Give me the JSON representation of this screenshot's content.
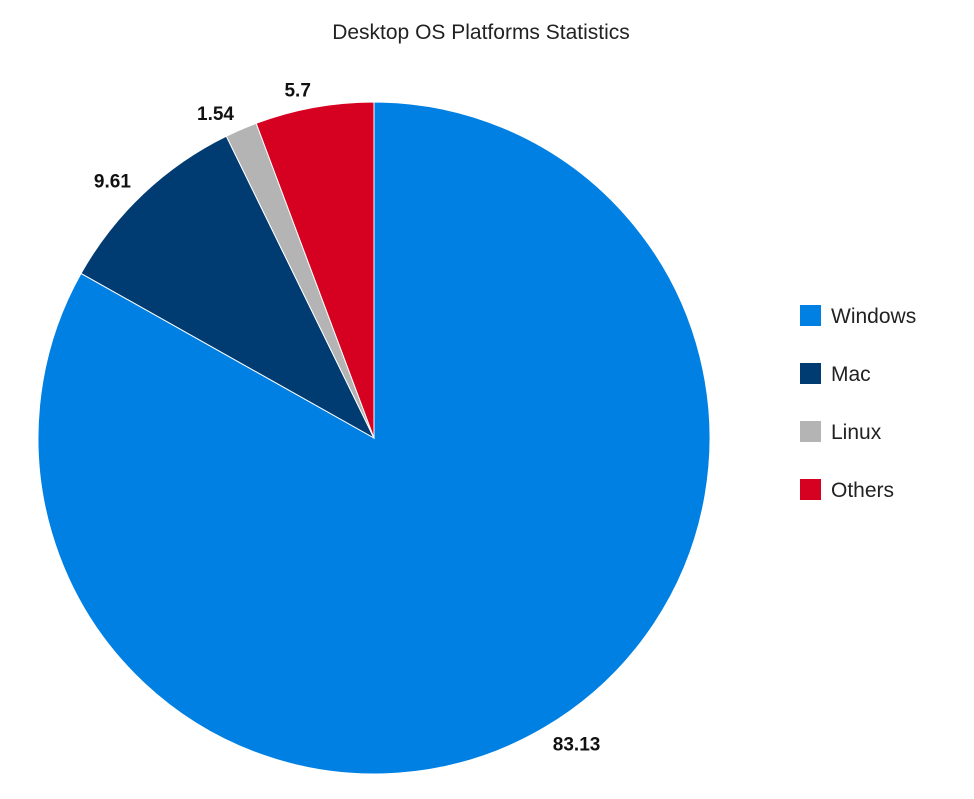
{
  "chart_data": {
    "type": "pie",
    "title": "Desktop OS Platforms Statistics",
    "legend_position": "right",
    "slices": [
      {
        "label": "Windows",
        "value": 83.13,
        "value_label": "83.13",
        "color": "#0180e4"
      },
      {
        "label": "Mac",
        "value": 9.61,
        "value_label": "9.61",
        "color": "#003c72"
      },
      {
        "label": "Linux",
        "value": 1.54,
        "value_label": "1.54",
        "color": "#b4b4b4"
      },
      {
        "label": "Others",
        "value": 5.7,
        "value_label": "5.7",
        "color": "#d60020"
      }
    ]
  }
}
